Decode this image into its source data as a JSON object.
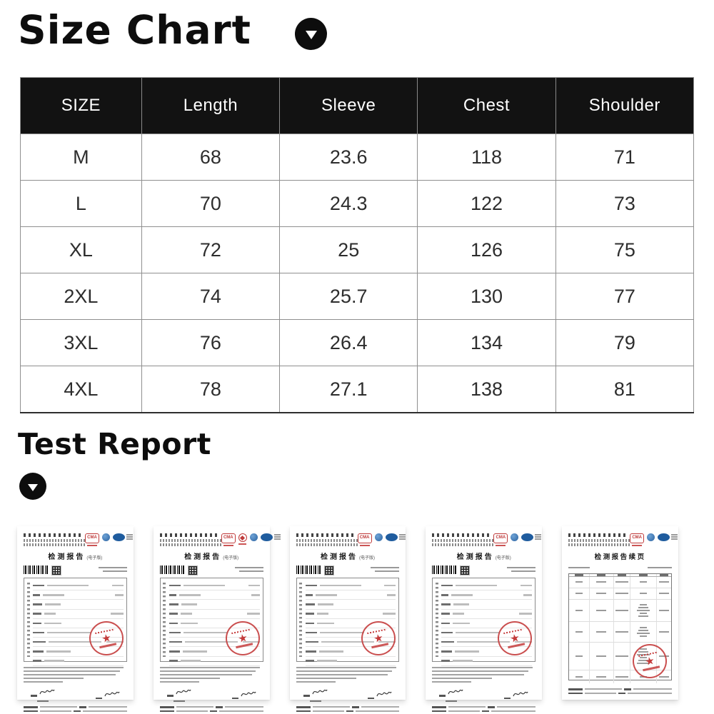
{
  "size_chart": {
    "title": "Size Chart",
    "header": [
      "SIZE",
      "Length",
      "Sleeve",
      "Chest",
      "Shoulder"
    ],
    "rows": [
      [
        "M",
        "68",
        "23.6",
        "118",
        "71"
      ],
      [
        "L",
        "70",
        "24.3",
        "122",
        "73"
      ],
      [
        "XL",
        "72",
        "25",
        "126",
        "75"
      ],
      [
        "2XL",
        "74",
        "25.7",
        "130",
        "77"
      ],
      [
        "3XL",
        "76",
        "26.4",
        "134",
        "79"
      ],
      [
        "4XL",
        "78",
        "27.1",
        "138",
        "81"
      ]
    ],
    "header_bg": "#121212",
    "header_text_color": "#ffffff",
    "border_color": "#8a8a8a"
  },
  "test_report": {
    "title": "Test Report"
  },
  "logo_labels": {
    "cma": "CMA"
  },
  "certificates": [
    {
      "type": "report",
      "title": "检测报告",
      "subtitle": "(电子版)",
      "logos": [
        "cma",
        "globe",
        "cnas"
      ],
      "seal": "red-star-seal"
    },
    {
      "type": "report",
      "title": "检测报告",
      "subtitle": "(电子版)",
      "logos": [
        "cma",
        "cal",
        "globe",
        "cnas"
      ],
      "seal": "red-star-seal"
    },
    {
      "type": "report",
      "title": "检测报告",
      "subtitle": "(电子版)",
      "logos": [
        "cma",
        "globe",
        "cnas"
      ],
      "seal": "red-star-seal"
    },
    {
      "type": "report",
      "title": "检测报告",
      "subtitle": "(电子版)",
      "logos": [
        "cma",
        "globe",
        "cnas"
      ],
      "seal": "red-star-seal"
    },
    {
      "type": "continuation",
      "title": "检测报告续页",
      "logos": [
        "cma",
        "globe",
        "cnas"
      ],
      "seal": "red-star-seal"
    }
  ],
  "icons": {
    "collapse": "circle-down-arrow"
  },
  "colors": {
    "heading": "#0d0d0d",
    "table_text": "#2d2d2d",
    "seal_red": "#c43c3c",
    "logo_red": "#bf3a3a",
    "logo_blue": "#2b62a0"
  }
}
